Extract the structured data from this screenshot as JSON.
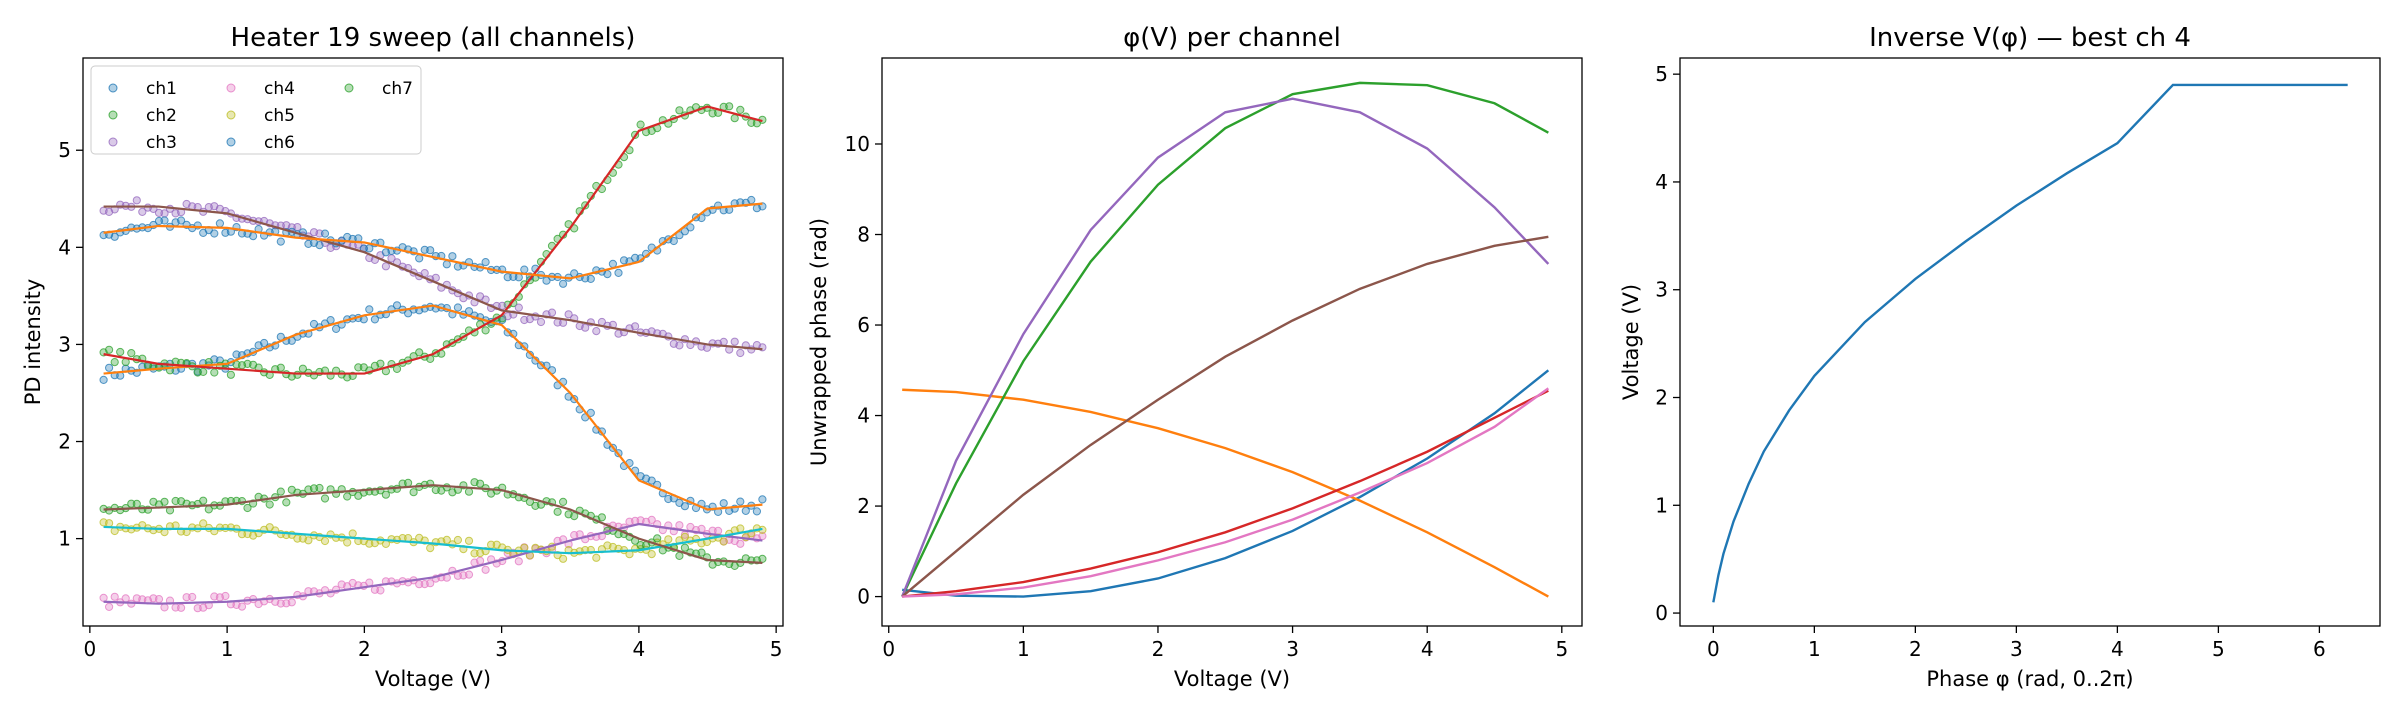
{
  "figure": {
    "panels": [
      {
        "title": "Heater 19 sweep (all channels)",
        "xlabel": "Voltage (V)",
        "ylabel": "PD intensity"
      },
      {
        "title": "φ(V) per channel",
        "xlabel": "Voltage (V)",
        "ylabel": "Unwrapped phase (rad)"
      },
      {
        "title": "Inverse V(φ) — best ch 4",
        "xlabel": "Phase φ (rad, 0..2π)",
        "ylabel": "Voltage (V)"
      }
    ]
  },
  "chart_data": [
    {
      "type": "scatter",
      "title": "Heater 19 sweep (all channels)",
      "xlabel": "Voltage (V)",
      "ylabel": "PD intensity",
      "xlim": [
        -0.05,
        5.05
      ],
      "ylim": [
        0.1,
        5.95
      ],
      "xticks": [
        0,
        1,
        2,
        3,
        4,
        5
      ],
      "yticks": [
        1,
        2,
        3,
        4,
        5
      ],
      "grid": false,
      "legend": {
        "placement": "top-left",
        "columns": 3,
        "entries": [
          "ch1",
          "ch2",
          "ch3",
          "ch4",
          "ch5",
          "ch6",
          "ch7"
        ]
      },
      "x": [
        0.1,
        0.5,
        1.0,
        1.5,
        2.0,
        2.5,
        3.0,
        3.5,
        4.0,
        4.5,
        4.9
      ],
      "series": [
        {
          "name": "ch1",
          "color": "#1f77b4",
          "fit_color": "#ff7f0e",
          "values": [
            2.7,
            2.75,
            2.8,
            3.1,
            3.3,
            3.4,
            3.2,
            2.5,
            1.6,
            1.3,
            1.35
          ]
        },
        {
          "name": "ch2",
          "color": "#2ca02c",
          "fit_color": "#d62728",
          "values": [
            2.9,
            2.8,
            2.75,
            2.7,
            2.7,
            2.9,
            3.3,
            4.2,
            5.2,
            5.45,
            5.3
          ]
        },
        {
          "name": "ch3",
          "color": "#9467bd",
          "fit_color": "#8c564b",
          "values": [
            4.42,
            4.42,
            4.35,
            4.15,
            3.95,
            3.65,
            3.35,
            3.25,
            3.12,
            3.0,
            2.95
          ]
        },
        {
          "name": "ch4",
          "color": "#e377c2",
          "fit_color": "#9467bd",
          "values": [
            0.35,
            0.33,
            0.35,
            0.4,
            0.5,
            0.6,
            0.78,
            0.98,
            1.15,
            1.05,
            0.98
          ]
        },
        {
          "name": "ch5",
          "color": "#bcbd22",
          "fit_color": "#17becf",
          "values": [
            1.12,
            1.1,
            1.1,
            1.05,
            1.0,
            0.95,
            0.88,
            0.85,
            0.88,
            1.0,
            1.1
          ]
        },
        {
          "name": "ch6",
          "color": "#1f77b4",
          "fit_color": "#ff7f0e",
          "values": [
            4.15,
            4.22,
            4.2,
            4.1,
            4.05,
            3.9,
            3.75,
            3.68,
            3.85,
            4.4,
            4.45
          ]
        },
        {
          "name": "ch7",
          "color": "#2ca02c",
          "fit_color": "#8c564b",
          "values": [
            1.3,
            1.32,
            1.35,
            1.45,
            1.5,
            1.55,
            1.5,
            1.3,
            1.0,
            0.78,
            0.75
          ]
        }
      ]
    },
    {
      "type": "line",
      "title": "φ(V) per channel",
      "xlabel": "Voltage (V)",
      "ylabel": "Unwrapped phase (rad)",
      "xlim": [
        -0.05,
        5.15
      ],
      "ylim": [
        -0.65,
        11.9
      ],
      "xticks": [
        0,
        1,
        2,
        3,
        4,
        5
      ],
      "yticks": [
        0,
        2,
        4,
        6,
        8,
        10
      ],
      "grid": false,
      "x": [
        0.1,
        0.5,
        1.0,
        1.5,
        2.0,
        2.5,
        3.0,
        3.5,
        4.0,
        4.5,
        4.9
      ],
      "series": [
        {
          "color": "#1f77b4",
          "values": [
            0.15,
            0.02,
            0.0,
            0.12,
            0.4,
            0.85,
            1.45,
            2.2,
            3.05,
            4.05,
            5.0
          ]
        },
        {
          "color": "#ff7f0e",
          "values": [
            4.57,
            4.52,
            4.35,
            4.08,
            3.72,
            3.28,
            2.75,
            2.12,
            1.42,
            0.65,
            0.0
          ]
        },
        {
          "color": "#2ca02c",
          "values": [
            0.0,
            2.5,
            5.2,
            7.4,
            9.1,
            10.35,
            11.1,
            11.35,
            11.3,
            10.9,
            10.25
          ]
        },
        {
          "color": "#d62728",
          "values": [
            0.0,
            0.12,
            0.32,
            0.62,
            0.98,
            1.42,
            1.95,
            2.55,
            3.2,
            3.95,
            4.55
          ]
        },
        {
          "color": "#9467bd",
          "values": [
            0.0,
            3.0,
            5.8,
            8.1,
            9.7,
            10.7,
            11.0,
            10.7,
            9.9,
            8.6,
            7.35
          ]
        },
        {
          "color": "#8c564b",
          "values": [
            0.0,
            1.0,
            2.25,
            3.35,
            4.35,
            5.3,
            6.1,
            6.8,
            7.35,
            7.75,
            7.95
          ]
        },
        {
          "color": "#e377c2",
          "values": [
            0.0,
            0.05,
            0.2,
            0.45,
            0.8,
            1.2,
            1.7,
            2.3,
            2.95,
            3.75,
            4.6
          ]
        }
      ]
    },
    {
      "type": "line",
      "title": "Inverse V(φ) — best ch 4",
      "xlabel": "Phase φ (rad, 0..2π)",
      "ylabel": "Voltage (V)",
      "xlim": [
        -0.33,
        6.6
      ],
      "ylim": [
        -0.12,
        5.15
      ],
      "xticks": [
        0,
        1,
        2,
        3,
        4,
        5,
        6
      ],
      "yticks": [
        0,
        1,
        2,
        3,
        4,
        5
      ],
      "grid": false,
      "series": [
        {
          "color": "#1f77b4",
          "x": [
            0.0,
            0.05,
            0.1,
            0.2,
            0.35,
            0.5,
            0.75,
            1.0,
            1.5,
            2.0,
            2.5,
            3.0,
            3.5,
            4.0,
            4.55,
            5.0,
            5.5,
            6.28
          ],
          "values": [
            0.1,
            0.35,
            0.55,
            0.85,
            1.2,
            1.5,
            1.88,
            2.2,
            2.7,
            3.1,
            3.45,
            3.78,
            4.08,
            4.36,
            4.9,
            4.9,
            4.9,
            4.9
          ]
        }
      ]
    }
  ]
}
